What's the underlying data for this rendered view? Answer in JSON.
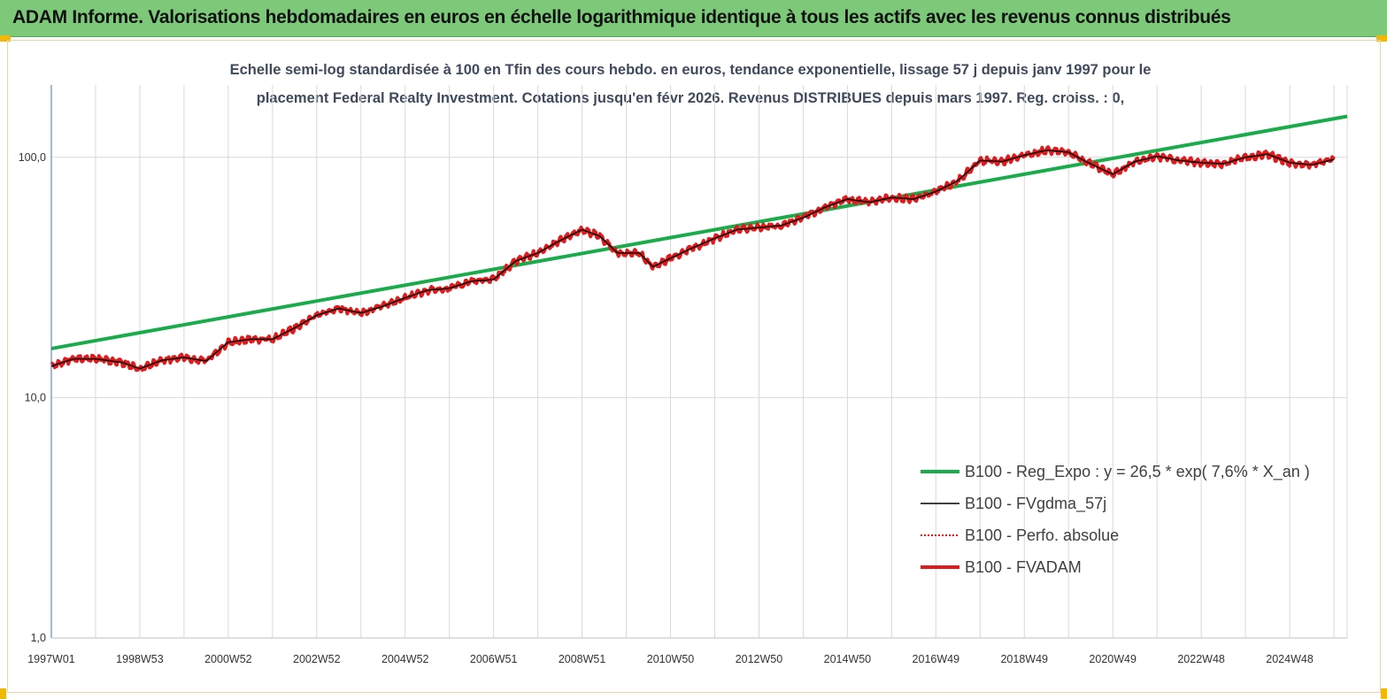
{
  "header": {
    "title": "ADAM Informe. Valorisations hebdomadaires en euros en échelle logarithmique identique à tous les actifs avec les revenus connus distribués"
  },
  "colors": {
    "banner": "#7dc97a",
    "regression": "#1aab4b",
    "smoothed": "#000000",
    "absolute": "#e31a1c",
    "fvadam": "#e31a1c"
  },
  "chart_data": {
    "type": "line",
    "title_lines": [
      "Echelle semi-log standardisée à 100 en Tfin des cours hebdo. en euros, tendance exponentielle, lissage 57 j depuis janv 1997 pour le",
      "placement Federal Realty Investment. Cotations jusqu'en févr 2026. Revenus DISTRIBUES depuis mars 1997. Reg. croiss. : 0,"
    ],
    "y_scale": "log",
    "ylim": [
      1,
      200
    ],
    "y_ticks": [
      {
        "value": 1,
        "label": "1,0"
      },
      {
        "value": 10,
        "label": "10,0"
      },
      {
        "value": 100,
        "label": "100,0"
      }
    ],
    "xlim": [
      1997.0,
      2026.3
    ],
    "x_ticks": [
      {
        "value": 1997.0,
        "label": "1997W01"
      },
      {
        "value": 1999.0,
        "label": "1998W53"
      },
      {
        "value": 2001.0,
        "label": "2000W52"
      },
      {
        "value": 2003.0,
        "label": "2002W52"
      },
      {
        "value": 2005.0,
        "label": "2004W52"
      },
      {
        "value": 2007.0,
        "label": "2006W51"
      },
      {
        "value": 2009.0,
        "label": "2008W51"
      },
      {
        "value": 2011.0,
        "label": "2010W50"
      },
      {
        "value": 2013.0,
        "label": "2012W50"
      },
      {
        "value": 2015.0,
        "label": "2014W50"
      },
      {
        "value": 2017.0,
        "label": "2016W49"
      },
      {
        "value": 2019.0,
        "label": "2018W49"
      },
      {
        "value": 2021.0,
        "label": "2020W49"
      },
      {
        "value": 2023.0,
        "label": "2022W48"
      },
      {
        "value": 2025.0,
        "label": "2024W48"
      }
    ],
    "vertical_grid": true,
    "legend_position": "bottom-right",
    "series": [
      {
        "name": "B100 - Reg_Expo : y = 26,5 *  exp( 7,6% *  X_an )",
        "style": "thick-solid",
        "color": "#1aab4b",
        "x": [
          1997.0,
          2026.3
        ],
        "y": [
          16.0,
          148.0
        ]
      },
      {
        "name": "B100 - FVgdma_57j",
        "style": "thin-solid",
        "color": "#000000",
        "x": [
          1997.0,
          1997.5,
          1998.0,
          1998.6,
          1999.0,
          1999.5,
          2000.0,
          2000.5,
          2001.0,
          2001.5,
          2002.0,
          2002.5,
          2003.0,
          2003.5,
          2004.0,
          2004.5,
          2005.0,
          2005.5,
          2006.0,
          2006.5,
          2007.0,
          2007.5,
          2008.0,
          2008.5,
          2009.0,
          2009.4,
          2009.8,
          2010.3,
          2010.6,
          2011.0,
          2011.5,
          2012.0,
          2012.5,
          2013.0,
          2013.5,
          2014.0,
          2014.5,
          2015.0,
          2015.5,
          2016.0,
          2016.5,
          2017.0,
          2017.5,
          2018.0,
          2018.5,
          2019.0,
          2019.5,
          2020.0,
          2020.3,
          2020.6,
          2021.0,
          2021.5,
          2022.0,
          2022.5,
          2023.0,
          2023.5,
          2024.0,
          2024.5,
          2025.0,
          2025.5,
          2026.0
        ],
        "y": [
          13.5,
          14.5,
          14.5,
          14.0,
          13.2,
          14.3,
          14.7,
          14.2,
          17.0,
          17.5,
          17.5,
          19.5,
          22.0,
          23.5,
          22.5,
          24.0,
          26.0,
          28.0,
          28.5,
          30.5,
          31.0,
          37.0,
          40.0,
          45.0,
          50.0,
          47.0,
          40.0,
          40.0,
          35.0,
          38.0,
          42.0,
          46.0,
          50.0,
          51.0,
          52.0,
          56.0,
          62.0,
          67.0,
          65.0,
          68.0,
          67.0,
          72.0,
          80.0,
          97.0,
          96.0,
          102.0,
          107.0,
          105.0,
          98.0,
          92.0,
          85.0,
          96.0,
          101.0,
          97.0,
          95.0,
          94.0,
          100.0,
          103.0,
          95.0,
          93.0,
          98.0
        ]
      },
      {
        "name": "B100 - Perfo. absolue",
        "style": "dotted",
        "color": "#e31a1c",
        "x": [],
        "y": []
      },
      {
        "name": "B100 - FVADAM",
        "style": "thick-solid",
        "color": "#e31a1c",
        "x": [
          1997.0,
          1997.5,
          1998.0,
          1998.6,
          1999.0,
          1999.5,
          2000.0,
          2000.5,
          2001.0,
          2001.5,
          2002.0,
          2002.5,
          2003.0,
          2003.5,
          2004.0,
          2004.5,
          2005.0,
          2005.5,
          2006.0,
          2006.5,
          2007.0,
          2007.5,
          2008.0,
          2008.5,
          2009.0,
          2009.4,
          2009.8,
          2010.3,
          2010.6,
          2011.0,
          2011.5,
          2012.0,
          2012.5,
          2013.0,
          2013.5,
          2014.0,
          2014.5,
          2015.0,
          2015.5,
          2016.0,
          2016.5,
          2017.0,
          2017.5,
          2018.0,
          2018.5,
          2019.0,
          2019.5,
          2020.0,
          2020.3,
          2020.6,
          2021.0,
          2021.5,
          2022.0,
          2022.5,
          2023.0,
          2023.5,
          2024.0,
          2024.5,
          2025.0,
          2025.5,
          2026.0
        ],
        "y": [
          13.5,
          14.5,
          14.5,
          14.0,
          13.2,
          14.3,
          14.7,
          14.2,
          17.0,
          17.5,
          17.5,
          19.5,
          22.0,
          23.5,
          22.5,
          24.0,
          26.0,
          28.0,
          28.5,
          30.5,
          31.0,
          37.0,
          40.0,
          45.0,
          50.0,
          47.0,
          40.0,
          40.0,
          35.0,
          38.0,
          42.0,
          46.0,
          50.0,
          51.0,
          52.0,
          56.0,
          62.0,
          67.0,
          65.0,
          68.0,
          67.0,
          72.0,
          80.0,
          97.0,
          96.0,
          102.0,
          107.0,
          105.0,
          98.0,
          92.0,
          85.0,
          96.0,
          101.0,
          97.0,
          95.0,
          94.0,
          100.0,
          103.0,
          95.0,
          93.0,
          98.0
        ]
      }
    ]
  }
}
